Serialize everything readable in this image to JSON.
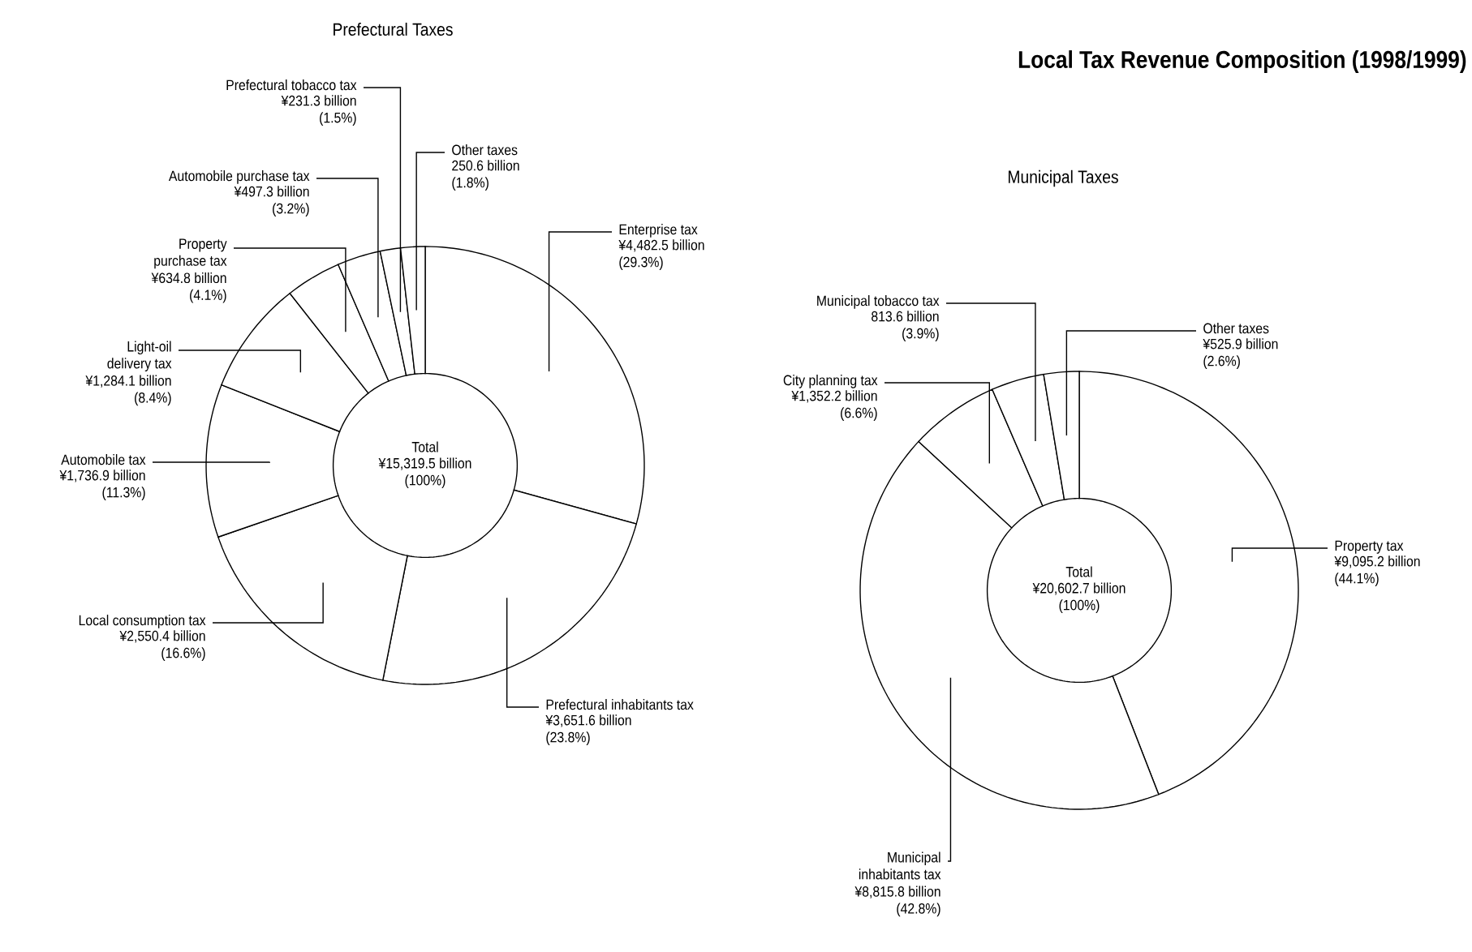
{
  "chart_data": [
    {
      "type": "donut",
      "title": "Prefectural Taxes",
      "categories": [
        "Enterprise tax",
        "Prefectural inhabitants tax",
        "Local consumption tax",
        "Automobile tax",
        "Light-oil delivery tax",
        "Property purchase tax",
        "Automobile purchase tax",
        "Prefectural tobacco tax",
        "Other taxes"
      ],
      "values": [
        29.3,
        23.8,
        16.6,
        11.3,
        8.4,
        4.1,
        3.2,
        1.5,
        1.8
      ],
      "value_labels": [
        "¥4,482.5 billion (29.3%)",
        "¥3,651.6 billion (23.8%)",
        "¥2,550.4 billion (16.6%)",
        "¥1,736.9 billion (11.3%)",
        "¥1,284.1 billion (8.4%)",
        "¥634.8 billion (4.1%)",
        "¥497.3 billion (3.2%)",
        "¥231.3 billion (1.5%)",
        "250.6 billion (1.8%)"
      ],
      "colors": [
        "#ffffff",
        "#ffffff",
        "#ffffff",
        "#ffffff",
        "#ffffff",
        "#ffffff",
        "#ffffff",
        "#ffffff",
        "#ffffff"
      ],
      "annotations": [
        "Local Tax Revenue Composition (1998/1999)",
        "Total",
        "¥15,319.5 billion (100%)"
      ]
    },
    {
      "type": "donut",
      "title": "Municipal Taxes",
      "categories": [
        "Property tax",
        "Municipal inhabitants tax",
        "City planning tax",
        "Municipal tobacco tax",
        "Other taxes"
      ],
      "values": [
        44.1,
        42.8,
        6.6,
        3.9,
        2.6
      ],
      "value_labels": [
        "¥9,095.2 billion (44.1%)",
        "¥8,815.8 billion (42.8%)",
        "¥1,352.2 billion (6.6%)",
        "813.6 billion (3.9%)",
        "¥525.9 billion (2.6%)"
      ],
      "colors": [
        "#ffffff",
        "#ffffff",
        "#ffffff",
        "#ffffff",
        "#ffffff"
      ],
      "annotations": [
        "Total",
        "¥20,602.7 billion (100%)"
      ]
    }
  ]
}
